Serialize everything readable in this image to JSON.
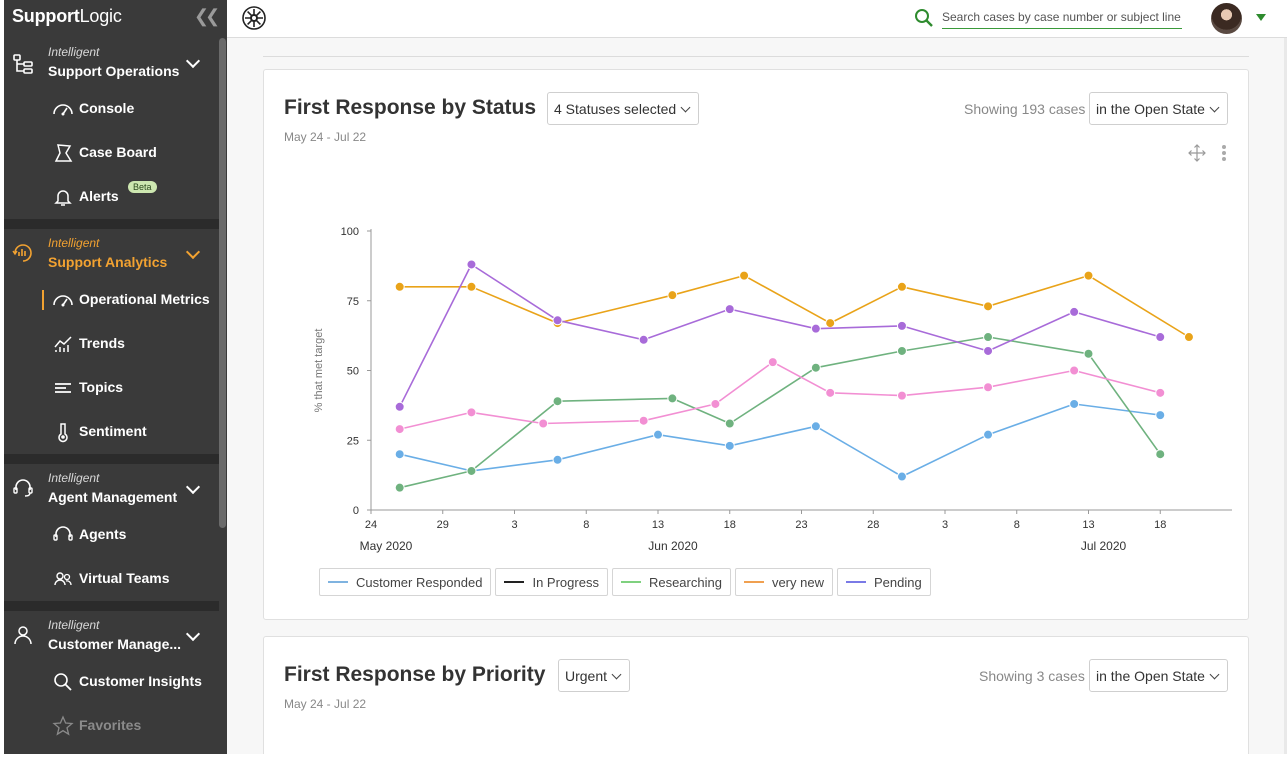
{
  "sidebar": {
    "brand": {
      "bold": "Support",
      "rest": "Logic"
    },
    "sections": [
      {
        "kicker": "Intelligent",
        "title": "Support Operations",
        "icon": "hierarchy-icon"
      },
      {
        "kicker": "Intelligent",
        "title": "Support Analytics",
        "icon": "analytics-icon"
      },
      {
        "kicker": "Intelligent",
        "title": "Agent Management",
        "icon": "headset-icon"
      },
      {
        "kicker": "Intelligent",
        "title": "Customer Manage...",
        "icon": "person-icon"
      }
    ],
    "items": {
      "console": "Console",
      "case_board": "Case Board",
      "alerts": "Alerts",
      "alerts_badge": "Beta",
      "operational_metrics": "Operational Metrics",
      "trends": "Trends",
      "topics": "Topics",
      "sentiment": "Sentiment",
      "agents": "Agents",
      "virtual_teams": "Virtual Teams",
      "customer_insights": "Customer Insights",
      "favorites": "Favorites"
    },
    "accent_color": "#f2a231"
  },
  "topbar": {
    "search_placeholder": "Search cases by case number or subject line"
  },
  "cards": [
    {
      "title": "First Response by Status",
      "filter": "4 Statuses selected",
      "showing": "Showing 193 cases",
      "state": "in the Open State",
      "date_range": "May 24 - Jul 22"
    },
    {
      "title": "First Response by Priority",
      "filter": "Urgent",
      "showing": "Showing 3 cases",
      "state": "in the Open State",
      "date_range": "May 24 - Jul 22"
    }
  ],
  "chart_data": {
    "type": "line",
    "ylabel": "% that met target",
    "ylim": [
      0,
      100
    ],
    "yticks": [
      0,
      25,
      50,
      75,
      100
    ],
    "xlim": [
      "2020-05-24",
      "2020-07-23"
    ],
    "xticks": [
      {
        "date": "2020-05-24",
        "label": "24",
        "month": "May 2020"
      },
      {
        "date": "2020-05-29",
        "label": "29"
      },
      {
        "date": "2020-06-03",
        "label": "3"
      },
      {
        "date": "2020-06-08",
        "label": "8"
      },
      {
        "date": "2020-06-13",
        "label": "13",
        "month": "Jun 2020"
      },
      {
        "date": "2020-06-18",
        "label": "18"
      },
      {
        "date": "2020-06-23",
        "label": "23"
      },
      {
        "date": "2020-06-28",
        "label": "28"
      },
      {
        "date": "2020-07-03",
        "label": "3"
      },
      {
        "date": "2020-07-08",
        "label": "8"
      },
      {
        "date": "2020-07-13",
        "label": "13",
        "month": "Jul 2020"
      },
      {
        "date": "2020-07-18",
        "label": "18"
      }
    ],
    "series": [
      {
        "name": "Customer Responded",
        "color": "#6aaee6",
        "line_color": "#7fb3e0",
        "points": [
          [
            "2020-05-26",
            20
          ],
          [
            "2020-05-31",
            14
          ],
          [
            "2020-06-06",
            18
          ],
          [
            "2020-06-13",
            27
          ],
          [
            "2020-06-18",
            23
          ],
          [
            "2020-06-24",
            30
          ],
          [
            "2020-06-30",
            12
          ],
          [
            "2020-07-06",
            27
          ],
          [
            "2020-07-12",
            38
          ],
          [
            "2020-07-18",
            34
          ]
        ]
      },
      {
        "name": "In Progress",
        "color": "#222222",
        "line_color": "#222222",
        "points": []
      },
      {
        "name": "Researching",
        "color": "#6fb27f",
        "line_color": "#7fd17f",
        "points": [
          [
            "2020-05-26",
            8
          ],
          [
            "2020-05-31",
            14
          ],
          [
            "2020-06-06",
            39
          ],
          [
            "2020-06-14",
            40
          ],
          [
            "2020-06-18",
            31
          ],
          [
            "2020-06-24",
            51
          ],
          [
            "2020-06-30",
            57
          ],
          [
            "2020-07-06",
            62
          ],
          [
            "2020-07-13",
            56
          ],
          [
            "2020-07-18",
            20
          ]
        ]
      },
      {
        "name": "very new",
        "color": "#e9a319",
        "line_color": "#f0a050",
        "points": [
          [
            "2020-05-26",
            80
          ],
          [
            "2020-05-31",
            80
          ],
          [
            "2020-06-06",
            67
          ],
          [
            "2020-06-14",
            77
          ],
          [
            "2020-06-19",
            84
          ],
          [
            "2020-06-25",
            67
          ],
          [
            "2020-06-30",
            80
          ],
          [
            "2020-07-06",
            73
          ],
          [
            "2020-07-13",
            84
          ],
          [
            "2020-07-20",
            62
          ]
        ]
      },
      {
        "name": "Pending",
        "color": "#a86bd9",
        "line_color": "#7a7ae6",
        "points": [
          [
            "2020-05-26",
            37
          ],
          [
            "2020-05-31",
            88
          ],
          [
            "2020-06-06",
            68
          ],
          [
            "2020-06-12",
            61
          ],
          [
            "2020-06-18",
            72
          ],
          [
            "2020-06-24",
            65
          ],
          [
            "2020-06-30",
            66
          ],
          [
            "2020-07-06",
            57
          ],
          [
            "2020-07-12",
            71
          ],
          [
            "2020-07-18",
            62
          ]
        ]
      },
      {
        "name": "",
        "color": "#f28fd3",
        "line_color": "#f28fd3",
        "points": [
          [
            "2020-05-26",
            29
          ],
          [
            "2020-05-31",
            35
          ],
          [
            "2020-06-05",
            31
          ],
          [
            "2020-06-12",
            32
          ],
          [
            "2020-06-17",
            38
          ],
          [
            "2020-06-21",
            53
          ],
          [
            "2020-06-25",
            42
          ],
          [
            "2020-06-30",
            41
          ],
          [
            "2020-07-06",
            44
          ],
          [
            "2020-07-12",
            50
          ],
          [
            "2020-07-18",
            42
          ]
        ]
      }
    ],
    "legend": [
      "Customer Responded",
      "In Progress",
      "Researching",
      "very new",
      "Pending"
    ],
    "legend_placement": "bottom-left",
    "grid": false
  }
}
